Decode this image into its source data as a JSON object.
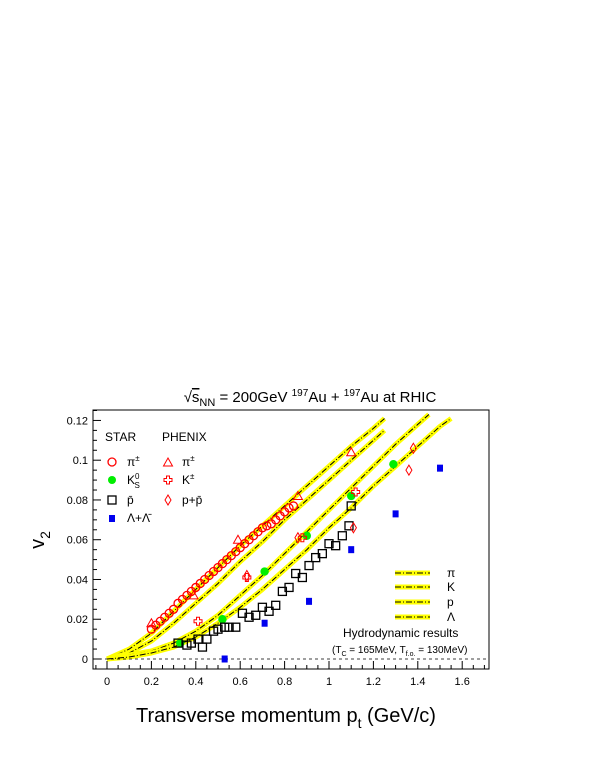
{
  "chart_data": {
    "type": "scatter",
    "title": {
      "sqrt": "√",
      "s": "s",
      "s_sub": "NN",
      "energy": " = 200GeV ",
      "a1": "197",
      "n1": "Au + ",
      "a2": "197",
      "n2": "Au at RHIC"
    },
    "xlabel": {
      "main": "Transverse momentum p",
      "sub": "t",
      "unit": " (GeV/c)"
    },
    "ylabel": {
      "main": "v",
      "sub": "2"
    },
    "xlim": [
      -0.1,
      1.8
    ],
    "ylim": [
      -0.005,
      0.125
    ],
    "x_ticks": [
      "0",
      "0.2",
      "0.4",
      "0.6",
      "0.8",
      "1",
      "1.2",
      "1.4",
      "1.6"
    ],
    "y_ticks": [
      "0",
      "0.02",
      "0.04",
      "0.06",
      "0.08",
      "0.1",
      "0.12"
    ],
    "grid": false,
    "legend_placement": "top-left",
    "legend": {
      "star_header": "STAR",
      "phenix_header": "PHENIX",
      "star_pi": "π",
      "star_pi_sup": "±",
      "star_k": "K",
      "star_k_sup": "0",
      "star_k_sub": "S",
      "star_pbar": "p̄",
      "star_lambda": "Λ+Λ̄",
      "phenix_pi": "π",
      "phenix_pi_sup": "±",
      "phenix_k": "K",
      "phenix_k_sup": "±",
      "phenix_p": "p+p̄"
    },
    "hydro_legend": {
      "pi": "π",
      "k": "K",
      "p": "p",
      "lambda": "Λ",
      "title": "Hydrodynamic results",
      "params": {
        "open": "(T",
        "s1": "C",
        "v1": " = 165MeV, T",
        "s2": "f.o.",
        "v2": " = 130MeV)"
      }
    },
    "colors": {
      "red": "#ff0000",
      "green": "#00ee00",
      "blue": "#0000ee",
      "black": "#000000",
      "band": "#ffff00"
    },
    "series": [
      {
        "name": "STAR π±",
        "marker": "open-circle",
        "color": "#ff0000",
        "points": [
          [
            0.2,
            0.015
          ],
          [
            0.22,
            0.017
          ],
          [
            0.24,
            0.019
          ],
          [
            0.26,
            0.021
          ],
          [
            0.28,
            0.023
          ],
          [
            0.3,
            0.025
          ],
          [
            0.32,
            0.028
          ],
          [
            0.34,
            0.03
          ],
          [
            0.36,
            0.032
          ],
          [
            0.38,
            0.034
          ],
          [
            0.4,
            0.036
          ],
          [
            0.42,
            0.038
          ],
          [
            0.44,
            0.04
          ],
          [
            0.46,
            0.042
          ],
          [
            0.48,
            0.044
          ],
          [
            0.5,
            0.046
          ],
          [
            0.52,
            0.048
          ],
          [
            0.54,
            0.05
          ],
          [
            0.56,
            0.052
          ],
          [
            0.58,
            0.054
          ],
          [
            0.6,
            0.056
          ],
          [
            0.62,
            0.058
          ],
          [
            0.64,
            0.06
          ],
          [
            0.66,
            0.062
          ],
          [
            0.68,
            0.064
          ],
          [
            0.7,
            0.066
          ],
          [
            0.72,
            0.067
          ],
          [
            0.74,
            0.068
          ],
          [
            0.76,
            0.07
          ],
          [
            0.78,
            0.072
          ],
          [
            0.8,
            0.074
          ],
          [
            0.82,
            0.076
          ],
          [
            0.84,
            0.077
          ]
        ]
      },
      {
        "name": "STAR K0S",
        "marker": "filled-circle",
        "color": "#00ee00",
        "points": [
          [
            0.33,
            0.008
          ],
          [
            0.52,
            0.02
          ],
          [
            0.71,
            0.044
          ],
          [
            0.9,
            0.062
          ],
          [
            1.1,
            0.082
          ],
          [
            1.29,
            0.098
          ]
        ]
      },
      {
        "name": "STAR p̄",
        "marker": "open-square",
        "color": "#000000",
        "points": [
          [
            0.32,
            0.008
          ],
          [
            0.36,
            0.007
          ],
          [
            0.38,
            0.008
          ],
          [
            0.41,
            0.01
          ],
          [
            0.43,
            0.006
          ],
          [
            0.45,
            0.01
          ],
          [
            0.48,
            0.014
          ],
          [
            0.5,
            0.015
          ],
          [
            0.53,
            0.016
          ],
          [
            0.55,
            0.016
          ],
          [
            0.58,
            0.016
          ],
          [
            0.61,
            0.023
          ],
          [
            0.64,
            0.021
          ],
          [
            0.67,
            0.022
          ],
          [
            0.7,
            0.026
          ],
          [
            0.73,
            0.024
          ],
          [
            0.76,
            0.027
          ],
          [
            0.79,
            0.034
          ],
          [
            0.82,
            0.036
          ],
          [
            0.85,
            0.043
          ],
          [
            0.88,
            0.041
          ],
          [
            0.91,
            0.047
          ],
          [
            0.94,
            0.051
          ],
          [
            0.97,
            0.053
          ],
          [
            1.0,
            0.058
          ],
          [
            1.03,
            0.057
          ],
          [
            1.06,
            0.062
          ],
          [
            1.09,
            0.067
          ],
          [
            1.1,
            0.077
          ]
        ]
      },
      {
        "name": "STAR Λ+Λ̄",
        "marker": "filled-square",
        "color": "#0000ee",
        "points": [
          [
            0.53,
            0.0
          ],
          [
            0.71,
            0.018
          ],
          [
            0.91,
            0.029
          ],
          [
            1.1,
            0.055
          ],
          [
            1.3,
            0.073
          ],
          [
            1.5,
            0.096
          ]
        ]
      },
      {
        "name": "PHENIX π±",
        "marker": "open-triangle",
        "color": "#ff0000",
        "points": [
          [
            0.2,
            0.018
          ],
          [
            0.39,
            0.032
          ],
          [
            0.59,
            0.06
          ],
          [
            0.86,
            0.082
          ],
          [
            1.1,
            0.104
          ]
        ]
      },
      {
        "name": "PHENIX K±",
        "marker": "open-cross",
        "color": "#ff0000",
        "points": [
          [
            0.41,
            0.019
          ],
          [
            0.63,
            0.041
          ],
          [
            0.88,
            0.061
          ],
          [
            1.12,
            0.084
          ]
        ]
      },
      {
        "name": "PHENIX p+p̄",
        "marker": "open-diamond",
        "color": "#ff0000",
        "points": [
          [
            0.63,
            0.042
          ],
          [
            0.86,
            0.061
          ],
          [
            1.11,
            0.066
          ],
          [
            1.36,
            0.095
          ],
          [
            1.38,
            0.106
          ]
        ]
      }
    ],
    "curves": [
      {
        "name": "π",
        "points": [
          [
            0.0,
            0.0
          ],
          [
            0.1,
            0.005
          ],
          [
            0.2,
            0.013
          ],
          [
            0.3,
            0.024
          ],
          [
            0.4,
            0.035
          ],
          [
            0.5,
            0.046
          ],
          [
            0.6,
            0.057
          ],
          [
            0.7,
            0.067
          ],
          [
            0.8,
            0.077
          ],
          [
            0.9,
            0.087
          ],
          [
            1.0,
            0.097
          ],
          [
            1.1,
            0.107
          ],
          [
            1.2,
            0.116
          ],
          [
            1.25,
            0.121
          ]
        ]
      },
      {
        "name": "K",
        "points": [
          [
            0.0,
            0.0
          ],
          [
            0.1,
            0.003
          ],
          [
            0.2,
            0.009
          ],
          [
            0.3,
            0.018
          ],
          [
            0.4,
            0.028
          ],
          [
            0.5,
            0.038
          ],
          [
            0.6,
            0.049
          ],
          [
            0.7,
            0.059
          ],
          [
            0.8,
            0.07
          ],
          [
            0.9,
            0.08
          ],
          [
            1.0,
            0.09
          ],
          [
            1.1,
            0.1
          ],
          [
            1.2,
            0.11
          ],
          [
            1.25,
            0.115
          ]
        ]
      },
      {
        "name": "p",
        "points": [
          [
            0.0,
            0.0
          ],
          [
            0.1,
            0.002
          ],
          [
            0.2,
            0.004
          ],
          [
            0.3,
            0.008
          ],
          [
            0.4,
            0.014
          ],
          [
            0.5,
            0.022
          ],
          [
            0.6,
            0.032
          ],
          [
            0.7,
            0.042
          ],
          [
            0.8,
            0.053
          ],
          [
            0.9,
            0.064
          ],
          [
            1.0,
            0.075
          ],
          [
            1.1,
            0.086
          ],
          [
            1.2,
            0.097
          ],
          [
            1.3,
            0.108
          ],
          [
            1.4,
            0.118
          ],
          [
            1.45,
            0.123
          ]
        ]
      },
      {
        "name": "Λ",
        "points": [
          [
            0.0,
            0.0
          ],
          [
            0.1,
            0.001
          ],
          [
            0.2,
            0.003
          ],
          [
            0.3,
            0.006
          ],
          [
            0.4,
            0.011
          ],
          [
            0.5,
            0.018
          ],
          [
            0.6,
            0.026
          ],
          [
            0.7,
            0.035
          ],
          [
            0.8,
            0.045
          ],
          [
            0.9,
            0.055
          ],
          [
            1.0,
            0.066
          ],
          [
            1.1,
            0.076
          ],
          [
            1.2,
            0.087
          ],
          [
            1.3,
            0.097
          ],
          [
            1.4,
            0.107
          ],
          [
            1.5,
            0.117
          ],
          [
            1.55,
            0.121
          ]
        ]
      }
    ],
    "reference_line": {
      "y": 0,
      "style": "dashed"
    }
  }
}
